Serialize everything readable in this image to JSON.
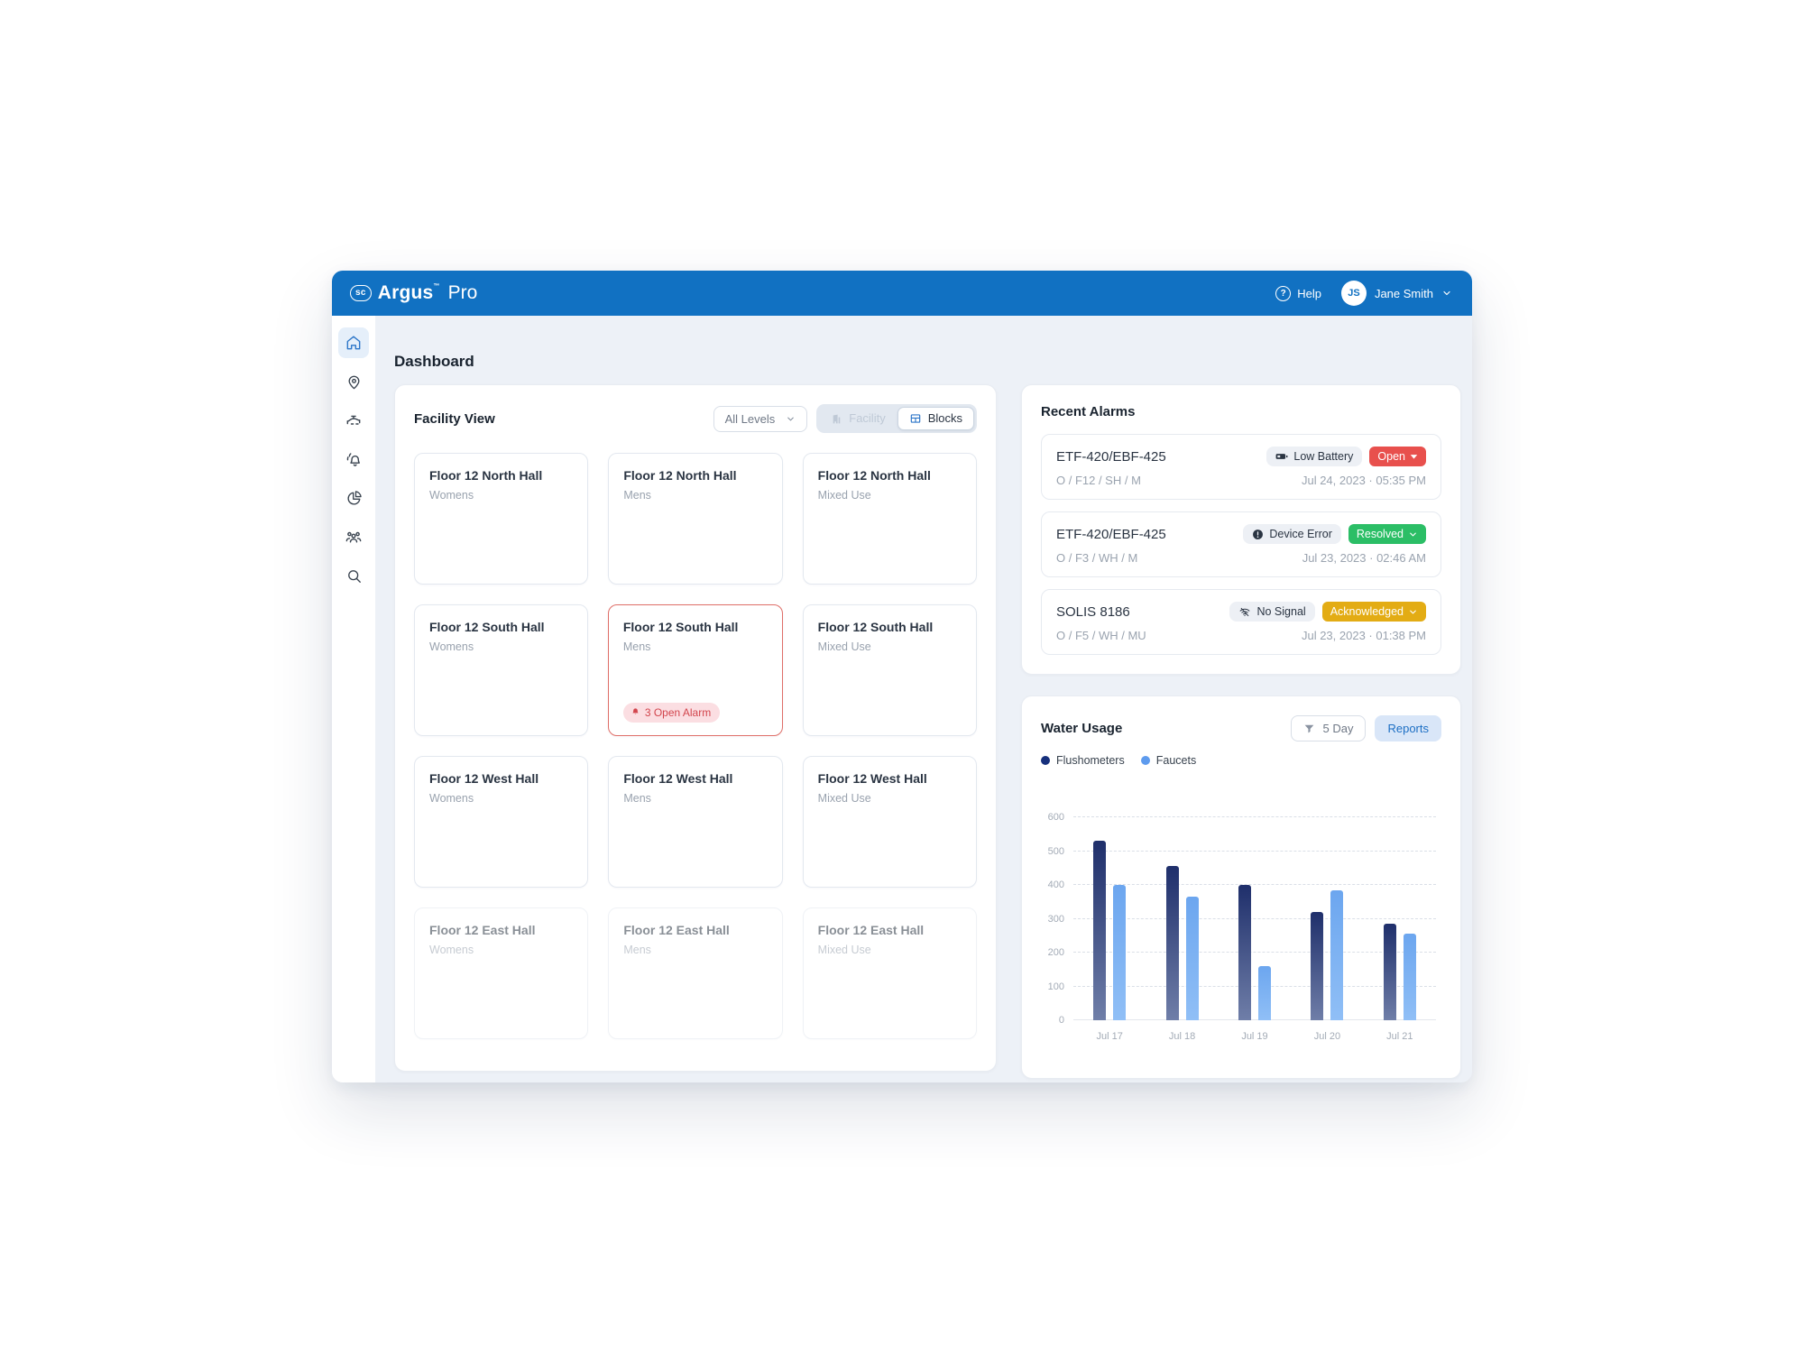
{
  "colors": {
    "header_blue": "#1171C2",
    "accent_blue": "#2E77C9",
    "open_red": "#E8504D",
    "resolved_green": "#2BBE66",
    "acknowledged_amber": "#E3AC14",
    "alarm_pink_bg": "#FBDEE2",
    "alarm_red_text": "#D2454D"
  },
  "header": {
    "logo_badge": "sc",
    "logo_name": "Argus",
    "logo_tm": "™",
    "logo_suffix": "Pro",
    "help_label": "Help",
    "avatar_initials": "JS",
    "user_name": "Jane Smith"
  },
  "sidebar": {
    "items": [
      {
        "icon": "home-icon",
        "active": true
      },
      {
        "icon": "map-pin-icon",
        "active": false
      },
      {
        "icon": "faucet-icon",
        "active": false
      },
      {
        "icon": "alarms-bell-icon",
        "active": false
      },
      {
        "icon": "pie-chart-icon",
        "active": false
      },
      {
        "icon": "users-icon",
        "active": false
      },
      {
        "icon": "search-icon",
        "active": false
      }
    ]
  },
  "page_title": "Dashboard",
  "facility_view": {
    "title": "Facility View",
    "level_filter_value": "All Levels",
    "view_toggle": {
      "facility_label": "Facility",
      "blocks_label": "Blocks",
      "active": "Blocks"
    },
    "cards": [
      {
        "title": "Floor 12 North Hall",
        "subtitle": "Womens"
      },
      {
        "title": "Floor 12 North Hall",
        "subtitle": "Mens"
      },
      {
        "title": "Floor 12 North Hall",
        "subtitle": "Mixed Use"
      },
      {
        "title": "Floor 12 South Hall",
        "subtitle": "Womens"
      },
      {
        "title": "Floor 12 South Hall",
        "subtitle": "Mens",
        "alarmed": true,
        "alarm_label": "3 Open Alarm"
      },
      {
        "title": "Floor 12 South Hall",
        "subtitle": "Mixed Use"
      },
      {
        "title": "Floor 12 West Hall",
        "subtitle": "Womens"
      },
      {
        "title": "Floor 12 West Hall",
        "subtitle": "Mens"
      },
      {
        "title": "Floor 12 West Hall",
        "subtitle": "Mixed Use"
      },
      {
        "title": "Floor 12 East Hall",
        "subtitle": "Womens",
        "faded": true
      },
      {
        "title": "Floor 12 East Hall",
        "subtitle": "Mens",
        "faded": true
      },
      {
        "title": "Floor 12 East Hall",
        "subtitle": "Mixed Use",
        "faded": true
      }
    ]
  },
  "recent_alarms": {
    "title": "Recent Alarms",
    "items": [
      {
        "device": "ETF-420/EBF-425",
        "issue": "Low Battery",
        "issue_icon": "battery-icon",
        "status": "Open",
        "status_color": "#E8504D",
        "location": "O / F12 / SH / M",
        "timestamp": "Jul 24, 2023 · 05:35 PM"
      },
      {
        "device": "ETF-420/EBF-425",
        "issue": "Device Error",
        "issue_icon": "device-error-icon",
        "status": "Resolved",
        "status_color": "#2BBE66",
        "location": "O / F3 / WH / M",
        "timestamp": "Jul 23, 2023 · 02:46 AM"
      },
      {
        "device": "SOLIS 8186",
        "issue": "No Signal",
        "issue_icon": "no-signal-icon",
        "status": "Acknowledged",
        "status_color": "#E3AC14",
        "location": "O / F5 / WH / MU",
        "timestamp": "Jul 23, 2023 · 01:38 PM"
      }
    ]
  },
  "water_usage": {
    "title": "Water Usage",
    "range_filter_label": "5 Day",
    "reports_button_label": "Reports",
    "chart_data": {
      "type": "bar",
      "categories": [
        "Jul 17",
        "Jul 18",
        "Jul 19",
        "Jul 20",
        "Jul 21"
      ],
      "series": [
        {
          "name": "Flushometers",
          "color": "#1F2F6B",
          "color_end": "#6F7EA8",
          "values": [
            530,
            455,
            400,
            320,
            285
          ]
        },
        {
          "name": "Faucets",
          "color": "#6CA6EF",
          "color_end": "#90BFF6",
          "values": [
            400,
            365,
            160,
            385,
            255
          ]
        }
      ],
      "ylim": [
        0,
        600
      ],
      "yticks": [
        0,
        100,
        200,
        300,
        400,
        500,
        600
      ],
      "grid": true,
      "legend_position": "top-left"
    }
  }
}
